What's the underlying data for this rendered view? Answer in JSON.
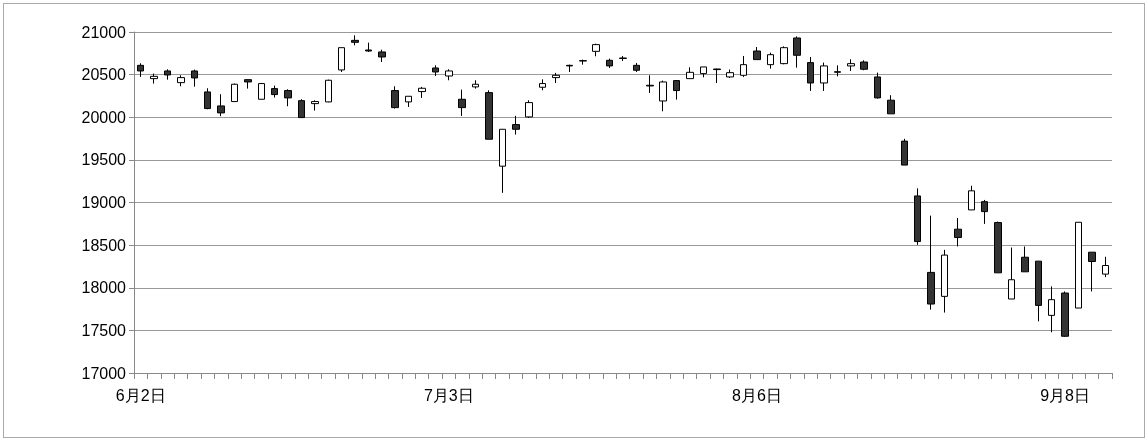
{
  "chart_data": {
    "type": "candlestick",
    "categories": [
      "6月2日",
      null,
      null,
      null,
      null,
      null,
      null,
      null,
      null,
      null,
      null,
      null,
      null,
      null,
      null,
      null,
      null,
      null,
      null,
      null,
      null,
      null,
      null,
      "7月3日",
      null,
      null,
      null,
      null,
      null,
      null,
      null,
      null,
      null,
      null,
      null,
      null,
      null,
      null,
      null,
      null,
      null,
      null,
      null,
      null,
      null,
      null,
      "8月6日",
      null,
      null,
      null,
      null,
      null,
      null,
      null,
      null,
      null,
      null,
      null,
      null,
      null,
      null,
      null,
      null,
      null,
      null,
      null,
      null,
      null,
      null,
      "9月8日",
      null,
      null,
      null
    ],
    "ohlc": [
      [
        20609,
        20633,
        20473,
        20543
      ],
      [
        20453,
        20512,
        20395,
        20480
      ],
      [
        20543,
        20563,
        20441,
        20496
      ],
      [
        20406,
        20492,
        20363,
        20465
      ],
      [
        20543,
        20559,
        20359,
        20461
      ],
      [
        20297,
        20340,
        20094,
        20102
      ],
      [
        20133,
        20270,
        20012,
        20051
      ],
      [
        20184,
        20395,
        20180,
        20387
      ],
      [
        20441,
        20445,
        20336,
        20414
      ],
      [
        20211,
        20402,
        20207,
        20395
      ],
      [
        20336,
        20371,
        20231,
        20266
      ],
      [
        20313,
        20328,
        20129,
        20227
      ],
      [
        20195,
        20211,
        19996,
        19996
      ],
      [
        20160,
        20199,
        20078,
        20184
      ],
      [
        20180,
        20441,
        20176,
        20434
      ],
      [
        20555,
        20816,
        20531,
        20816
      ],
      [
        20902,
        20961,
        20844,
        20879
      ],
      [
        20789,
        20875,
        20766,
        20777
      ],
      [
        20766,
        20793,
        20648,
        20707
      ],
      [
        20313,
        20363,
        20102,
        20113
      ],
      [
        20180,
        20246,
        20121,
        20246
      ],
      [
        20301,
        20356,
        20227,
        20340
      ],
      [
        20578,
        20609,
        20484,
        20531
      ],
      [
        20484,
        20563,
        20434,
        20543
      ],
      [
        20211,
        20324,
        20016,
        20113
      ],
      [
        20356,
        20434,
        20336,
        20387
      ],
      [
        20289,
        20316,
        19742,
        19742
      ],
      [
        19426,
        19859,
        19113,
        19859
      ],
      [
        19914,
        20016,
        19797,
        19859
      ],
      [
        20004,
        20199,
        19992,
        20172
      ],
      [
        20352,
        20445,
        20316,
        20395
      ],
      [
        20465,
        20520,
        20402,
        20492
      ],
      [
        20609,
        20617,
        20531,
        20602
      ],
      [
        20664,
        20676,
        20617,
        20660
      ],
      [
        20773,
        20863,
        20715,
        20852
      ],
      [
        20668,
        20688,
        20578,
        20602
      ],
      [
        20695,
        20719,
        20660,
        20690
      ],
      [
        20609,
        20637,
        20531,
        20551
      ],
      [
        20375,
        20492,
        20285,
        20367
      ],
      [
        20191,
        20430,
        20070,
        20414
      ],
      [
        20430,
        20430,
        20207,
        20313
      ],
      [
        20453,
        20586,
        20453,
        20527
      ],
      [
        20512,
        20590,
        20469,
        20590
      ],
      [
        20566,
        20570,
        20402,
        20559
      ],
      [
        20473,
        20559,
        20461,
        20523
      ],
      [
        20492,
        20719,
        20473,
        20617
      ],
      [
        20777,
        20824,
        20676,
        20676
      ],
      [
        20617,
        20758,
        20570,
        20734
      ],
      [
        20629,
        20832,
        20621,
        20816
      ],
      [
        20930,
        20949,
        20582,
        20727
      ],
      [
        20641,
        20707,
        20309,
        20402
      ],
      [
        20402,
        20641,
        20309,
        20602
      ],
      [
        20527,
        20609,
        20480,
        20535
      ],
      [
        20602,
        20680,
        20543,
        20629
      ],
      [
        20648,
        20668,
        20551,
        20563
      ],
      [
        20473,
        20523,
        20219,
        20227
      ],
      [
        20200,
        20258,
        20040,
        20040
      ],
      [
        19720,
        19747,
        19439,
        19439
      ],
      [
        19077,
        19166,
        18503,
        18542
      ],
      [
        18180,
        18846,
        17743,
        17809
      ],
      [
        17899,
        18445,
        17709,
        18383
      ],
      [
        18687,
        18819,
        18484,
        18589
      ],
      [
        18913,
        19197,
        18913,
        19137
      ],
      [
        19010,
        19030,
        18749,
        18893
      ],
      [
        18765,
        18776,
        18175,
        18175
      ],
      [
        17868,
        18472,
        17868,
        18094
      ],
      [
        18358,
        18484,
        18187,
        18187
      ],
      [
        18312,
        18312,
        17606,
        17793
      ],
      [
        17676,
        18016,
        17478,
        17860
      ],
      [
        17938,
        17957,
        17423,
        17431
      ],
      [
        17762,
        18768,
        17762,
        18768
      ],
      [
        18417,
        18417,
        17957,
        18308
      ],
      [
        18160,
        18363,
        18125,
        18261
      ]
    ],
    "colors": [
      "#333333",
      "#ffffff",
      "#333333",
      "#ffffff",
      "#333333",
      "#333333",
      "#333333",
      "#ffffff",
      "#333333",
      "#ffffff",
      "#333333",
      "#333333",
      "#333333",
      "#ffffff",
      "#ffffff",
      "#ffffff",
      "#333333",
      "#333333",
      "#333333",
      "#333333",
      "#ffffff",
      "#ffffff",
      "#333333",
      "#ffffff",
      "#333333",
      "#ffffff",
      "#333333",
      "#ffffff",
      "#333333",
      "#ffffff",
      "#ffffff",
      "#ffffff",
      "#333333",
      "#333333",
      "#ffffff",
      "#333333",
      "#333333",
      "#333333",
      "#333333",
      "#ffffff",
      "#333333",
      "#ffffff",
      "#ffffff",
      "#333333",
      "#ffffff",
      "#ffffff",
      "#333333",
      "#ffffff",
      "#ffffff",
      "#333333",
      "#333333",
      "#ffffff",
      "#ffffff",
      "#ffffff",
      "#333333",
      "#333333",
      "#333333",
      "#333333",
      "#333333",
      "#333333",
      "#ffffff",
      "#333333",
      "#ffffff",
      "#333333",
      "#333333",
      "#ffffff",
      "#333333",
      "#333333",
      "#ffffff",
      "#333333",
      "#ffffff",
      "#333333",
      "#ffffff"
    ],
    "ylim": [
      17000,
      21000
    ],
    "yticks": [
      17000,
      17500,
      18000,
      18500,
      19000,
      19500,
      20000,
      20500,
      21000
    ],
    "grid": "y"
  }
}
